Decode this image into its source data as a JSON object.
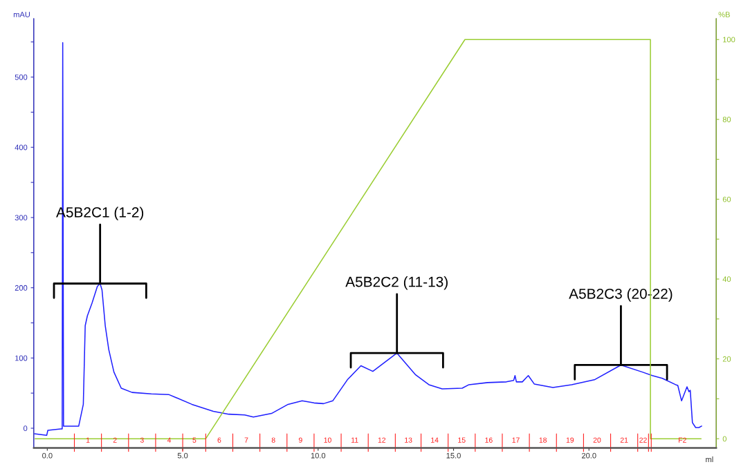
{
  "chart_data": {
    "type": "line",
    "xlabel": "ml",
    "ylabel": "mAU",
    "y2label": "%B",
    "series": [
      {
        "color": "#1f1fff",
        "x": [
          -0.47,
          -0.02,
          0.02,
          0.49,
          0.55,
          0.57,
          0.6,
          1.16,
          1.33,
          1.4,
          1.48,
          1.65,
          1.85,
          1.95,
          2.02,
          2.14,
          2.27,
          2.46,
          2.73,
          3.13,
          3.84,
          4.48,
          4.73,
          5.34,
          6.13,
          6.7,
          7.29,
          7.61,
          8.28,
          8.89,
          9.41,
          9.85,
          10.2,
          10.54,
          11.08,
          11.58,
          12.02,
          12.91,
          13.6,
          14.09,
          14.58,
          15.32,
          15.57,
          16.26,
          16.95,
          17.22,
          17.27,
          17.32,
          17.54,
          17.76,
          17.98,
          18.67,
          19.36,
          20.2,
          21.18,
          21.97,
          22.34,
          22.71,
          23.2,
          23.28,
          23.42,
          23.62,
          23.69,
          23.74,
          23.82,
          23.94,
          24.06,
          24.16
        ],
        "values": [
          -8,
          -10,
          -3,
          -1,
          -1,
          549,
          3,
          3,
          34,
          146,
          160,
          178,
          202,
          206,
          197,
          146,
          112,
          80,
          57,
          51,
          49,
          48,
          44,
          34,
          24,
          20,
          19,
          16,
          21,
          34,
          39,
          36,
          35,
          39,
          69,
          89,
          81,
          107,
          76,
          62,
          56,
          57,
          62,
          65,
          66,
          68,
          75,
          66,
          66,
          75,
          63,
          58,
          62,
          69,
          90,
          80,
          75,
          71,
          62,
          61,
          39,
          59,
          52,
          54,
          8,
          1,
          1,
          3
        ]
      },
      {
        "color": "#9acd32",
        "axis": "y2",
        "x": [
          -0.45,
          5.85,
          15.42,
          22.27,
          22.27,
          24.14
        ],
        "values": [
          0,
          0,
          100,
          100,
          0,
          0
        ]
      }
    ],
    "xlim": [
      -0.5,
      24.7
    ],
    "ylim": [
      -28,
      583
    ],
    "y2lim": [
      -2.3,
      105.2
    ],
    "xticks": [
      {
        "value": 0,
        "label": "0.0"
      },
      {
        "value": 5,
        "label": "5.0"
      },
      {
        "value": 10,
        "label": "10.0"
      },
      {
        "value": 15,
        "label": "15.0"
      },
      {
        "value": 20,
        "label": "20.0"
      }
    ],
    "yticks": [
      0,
      {
        "value": 50,
        "label": null
      },
      100,
      {
        "value": 150,
        "label": null
      },
      200,
      {
        "value": 250,
        "label": null
      },
      300,
      {
        "value": 350,
        "label": null
      },
      400,
      {
        "value": 450,
        "label": null
      },
      500,
      {
        "value": 550,
        "label": null
      }
    ],
    "y2ticks": [
      0,
      {
        "value": 10,
        "label": null
      },
      20,
      {
        "value": 30,
        "label": null
      },
      40,
      {
        "value": 50,
        "label": null
      },
      60,
      {
        "value": 70,
        "label": null
      },
      80,
      {
        "value": 90,
        "label": null
      },
      100
    ],
    "x2lim": [
      -0.5,
      24.7
    ],
    "x2ticks": [
      {
        "value": 1.0,
        "label": null
      },
      {
        "value": 1.5,
        "label": "1"
      },
      {
        "value": 2.0,
        "label": null
      },
      {
        "value": 2.5,
        "label": "2"
      },
      {
        "value": 3.0,
        "label": null
      },
      {
        "value": 3.5,
        "label": "3"
      },
      {
        "value": 4.0,
        "label": null
      },
      {
        "value": 4.5,
        "label": "4"
      },
      {
        "value": 5.0,
        "label": null
      },
      {
        "value": 5.43,
        "label": "5"
      },
      {
        "value": 5.85,
        "label": null
      },
      {
        "value": 6.35,
        "label": "6"
      },
      {
        "value": 6.85,
        "label": null
      },
      {
        "value": 7.35,
        "label": "7"
      },
      {
        "value": 7.85,
        "label": null
      },
      {
        "value": 8.35,
        "label": "8"
      },
      {
        "value": 8.85,
        "label": null
      },
      {
        "value": 9.35,
        "label": "9"
      },
      {
        "value": 9.85,
        "label": null
      },
      {
        "value": 10.35,
        "label": "10"
      },
      {
        "value": 10.85,
        "label": null
      },
      {
        "value": 11.35,
        "label": "11"
      },
      {
        "value": 11.85,
        "label": null
      },
      {
        "value": 12.35,
        "label": "12"
      },
      {
        "value": 12.85,
        "label": null
      },
      {
        "value": 13.33,
        "label": "13"
      },
      {
        "value": 13.8,
        "label": null
      },
      {
        "value": 14.3,
        "label": "14"
      },
      {
        "value": 14.8,
        "label": null
      },
      {
        "value": 15.3,
        "label": "15"
      },
      {
        "value": 15.8,
        "label": null
      },
      {
        "value": 16.3,
        "label": "16"
      },
      {
        "value": 16.8,
        "label": null
      },
      {
        "value": 17.3,
        "label": "17"
      },
      {
        "value": 17.8,
        "label": null
      },
      {
        "value": 18.3,
        "label": "18"
      },
      {
        "value": 18.8,
        "label": null
      },
      {
        "value": 19.3,
        "label": "19"
      },
      {
        "value": 19.8,
        "label": null
      },
      {
        "value": 20.3,
        "label": "20"
      },
      {
        "value": 20.8,
        "label": null
      },
      {
        "value": 21.3,
        "label": "21"
      },
      {
        "value": 21.8,
        "label": null
      },
      {
        "value": 22.0,
        "label": "22"
      },
      {
        "value": 22.2,
        "label": null
      },
      {
        "value": 22.3,
        "label": null
      },
      {
        "value": 23.45,
        "label": "F2"
      }
    ],
    "annotations": [
      {
        "text": "A5B2C1 (1-2)",
        "x": 1.95,
        "y": 206
      },
      {
        "text": "A5B2C2 (11-13)",
        "x": 12.91,
        "y": 107
      },
      {
        "text": "A5B2C3 (20-22)",
        "x": 21.18,
        "y": 90
      }
    ],
    "grid": false,
    "legend": false
  }
}
